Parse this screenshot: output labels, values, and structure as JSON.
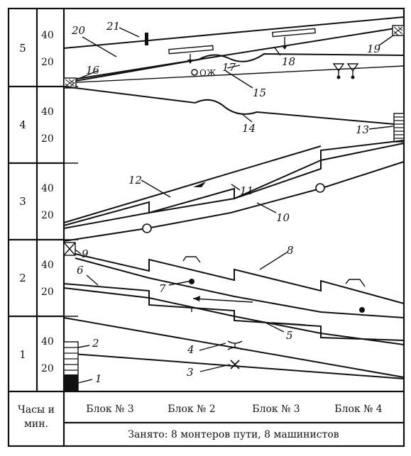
{
  "axis": {
    "hours": [
      "5",
      "4",
      "3",
      "2",
      "1"
    ],
    "ticks": [
      "40",
      "20"
    ],
    "unit_label_line1": "Часы и",
    "unit_label_line2": "мин."
  },
  "blocks": [
    "Блок № 3",
    "Блок № 2",
    "Блок № 3",
    "Блок № 4"
  ],
  "footer": "Занято: 8 монтеров пути, 8 машинистов",
  "annotations": {
    "l1": "1",
    "l2": "2",
    "l3": "3",
    "l4": "4",
    "l5": "5",
    "l6": "6",
    "l7": "7",
    "l8": "8",
    "l9": "9",
    "l10": "10",
    "l11": "11",
    "l12": "12",
    "l13": "13",
    "l14": "14",
    "l15": "15",
    "l16": "16",
    "l17": "17",
    "l18": "18",
    "l19": "19",
    "l20": "20",
    "l21": "21",
    "oj": "ОЖ"
  }
}
